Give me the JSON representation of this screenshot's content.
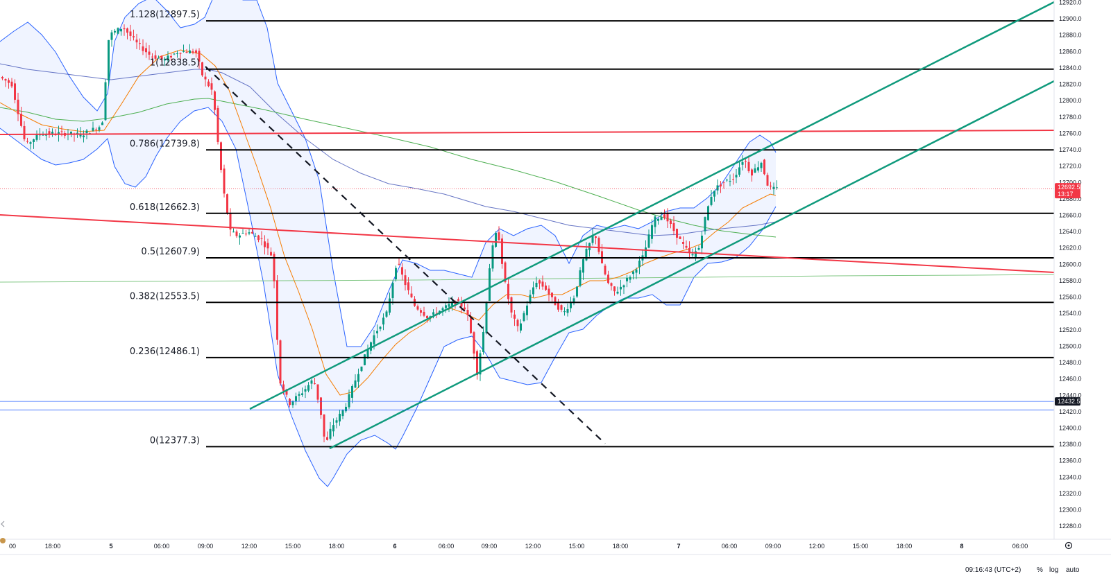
{
  "chart_data": {
    "type": "candlestick",
    "price_axis": {
      "min": 12260,
      "max": 12920,
      "step": 20,
      "ticks": [
        "12920.0",
        "12900.0",
        "12880.0",
        "12860.0",
        "12840.0",
        "12820.0",
        "12800.0",
        "12780.0",
        "12760.0",
        "12740.0",
        "12720.0",
        "12700.0",
        "12680.0",
        "12660.0",
        "12640.0",
        "12620.0",
        "12600.0",
        "12580.0",
        "12560.0",
        "12540.0",
        "12520.0",
        "12500.0",
        "12480.0",
        "12460.0",
        "12440.0",
        "12420.0",
        "12400.0",
        "12380.0",
        "12360.0",
        "12340.0",
        "12320.0",
        "12300.0",
        "12280.0"
      ]
    },
    "time_axis": {
      "labels": [
        "00",
        "18:00",
        "5",
        "06:00",
        "09:00",
        "12:00",
        "15:00",
        "18:00",
        "6",
        "06:00",
        "09:00",
        "12:00",
        "15:00",
        "18:00",
        "7",
        "06:00",
        "09:00",
        "12:00",
        "15:00",
        "18:00",
        "8",
        "06:00"
      ],
      "bold": [
        "5",
        "6",
        "7",
        "8"
      ]
    },
    "last_price": {
      "value": "12692.5",
      "countdown": "13:17",
      "color": "#f23645"
    },
    "marked_price": {
      "value": "12432.5",
      "color": "#131722"
    },
    "fibonacci": [
      {
        "label": "1.128(12897.5)",
        "price": 12897.5
      },
      {
        "label": "1(12838.5)",
        "price": 12838.5
      },
      {
        "label": "0.786(12739.8)",
        "price": 12739.8
      },
      {
        "label": "0.618(12662.3)",
        "price": 12662.3
      },
      {
        "label": "0.5(12607.9)",
        "price": 12607.9
      },
      {
        "label": "0.382(12553.5)",
        "price": 12553.5
      },
      {
        "label": "0.236(12486.1)",
        "price": 12486.1
      },
      {
        "label": "0(12377.3)",
        "price": 12377.3
      }
    ],
    "colors": {
      "up": "#089981",
      "down": "#f23645",
      "fib": "#000000",
      "channel": "#0f9a7c",
      "resistance": "#f23645",
      "bollinger": "#2962ff",
      "ema_fast": "#f57c00",
      "sma_slow": "#4caf50",
      "ma_blue": "#3f51b5"
    }
  },
  "footer": {
    "clock": "09:16:43 (UTC+2)",
    "percent": "%",
    "log": "log",
    "auto": "auto"
  },
  "icons": {
    "settings": "gear-icon",
    "collapse": "chevron-left-icon"
  }
}
